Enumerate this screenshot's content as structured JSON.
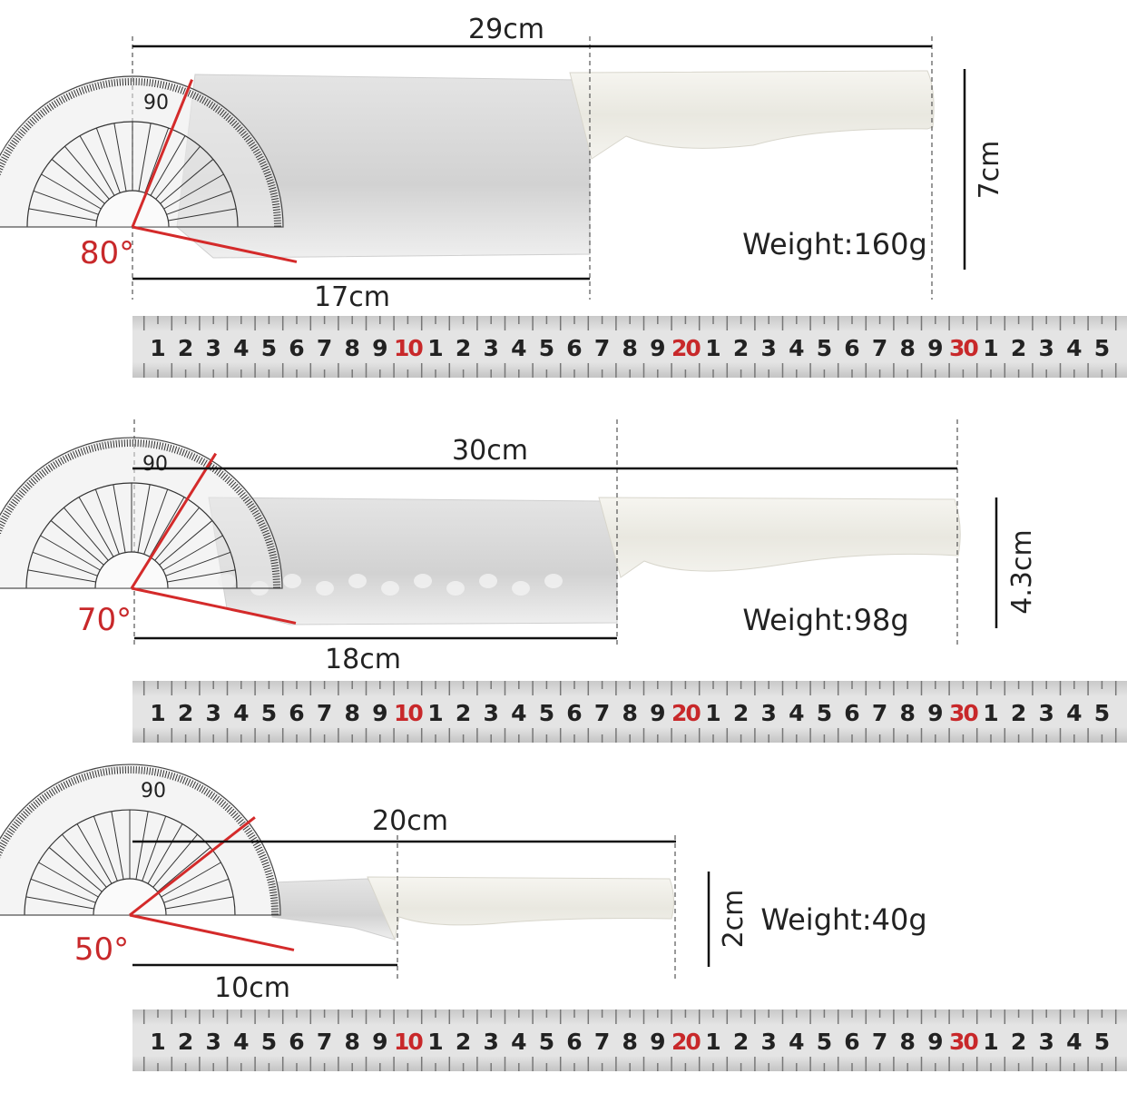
{
  "colors": {
    "accent_red": "#d42a2a",
    "line": "#111111",
    "handle": "#eeede6",
    "blade": "#d9d9d9",
    "ruler": "#d8d8d8"
  },
  "ruler_labels": [
    "1",
    "2",
    "3",
    "4",
    "5",
    "6",
    "7",
    "8",
    "9",
    "10",
    "1",
    "2",
    "3",
    "4",
    "5",
    "6",
    "7",
    "8",
    "9",
    "20",
    "1",
    "2",
    "3",
    "4",
    "5",
    "6",
    "7",
    "8",
    "9",
    "30",
    "1",
    "2",
    "3",
    "4",
    "5"
  ],
  "ruler_red_labels": [
    "10",
    "20",
    "30"
  ],
  "protractor_label": "90",
  "knives": [
    {
      "name": "cleaver",
      "total_length": "29cm",
      "blade_length": "17cm",
      "height": "7cm",
      "weight": "Weight:160g",
      "angle": "80°",
      "angle_deg": 80
    },
    {
      "name": "santoku",
      "total_length": "30cm",
      "blade_length": "18cm",
      "height": "4.3cm",
      "weight": "Weight:98g",
      "angle": "70°",
      "angle_deg": 70
    },
    {
      "name": "paring",
      "total_length": "20cm",
      "blade_length": "10cm",
      "height": "2cm",
      "weight": "Weight:40g",
      "angle": "50°",
      "angle_deg": 50
    }
  ]
}
